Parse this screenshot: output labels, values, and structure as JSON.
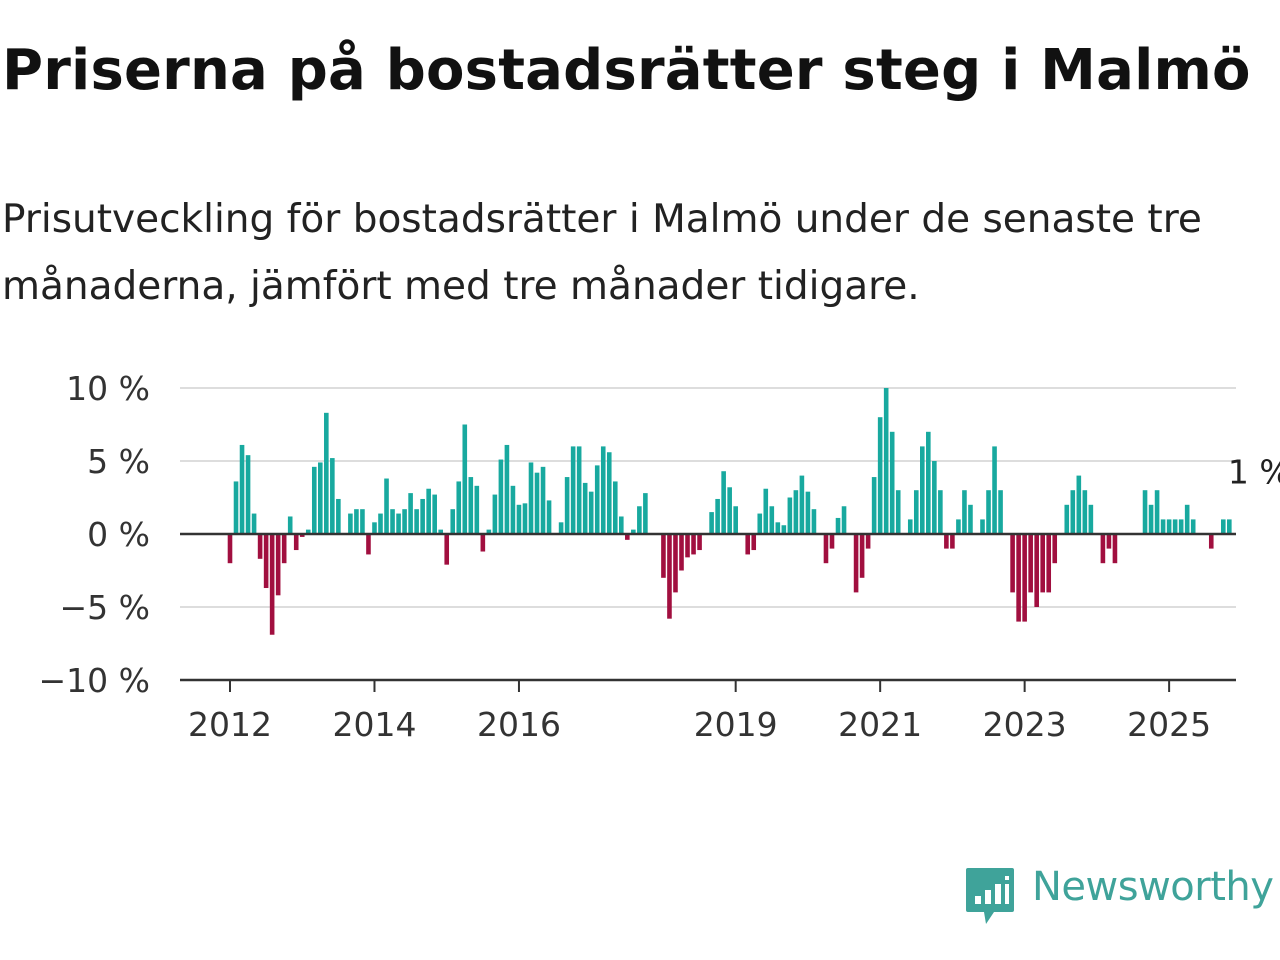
{
  "title": "Priserna på bostadsrätter steg i Malmö",
  "subtitle": "Prisutveckling för bostadsrätter i Malmö under de senaste tre månaderna, jämfört med tre månader tidigare.",
  "brand": {
    "name": "Newsworthy",
    "icon": "newsworthy-logo-icon",
    "color": "#3fa39a"
  },
  "colors": {
    "positive": "#18a99f",
    "negative": "#a10f3f",
    "grid": "#dddddd",
    "axis": "#333333"
  },
  "chart_data": {
    "type": "bar",
    "title": "Priserna på bostadsrätter steg i Malmö",
    "subtitle": "Prisutveckling för bostadsrätter i Malmö under de senaste tre månaderna, jämfört med tre månader tidigare.",
    "xlabel": "",
    "ylabel": "",
    "ylim": [
      -10,
      10
    ],
    "yticks": [
      {
        "value": 10,
        "label": "10 %"
      },
      {
        "value": 5,
        "label": "5 %"
      },
      {
        "value": 0,
        "label": "0 %"
      },
      {
        "value": -5,
        "label": "−5 %"
      },
      {
        "value": -10,
        "label": "−10 %"
      }
    ],
    "xticks": [
      "2012",
      "2014",
      "2016",
      "2019",
      "2021",
      "2023",
      "2025"
    ],
    "x_start": "2012-01",
    "x_end": "2025-04",
    "grid": true,
    "legend": "none",
    "values": [
      -2,
      3.6,
      6.1,
      5.4,
      1.4,
      -1.7,
      -3.7,
      -6.9,
      -4.2,
      -2,
      1.2,
      -1.1,
      -0.2,
      0.3,
      4.6,
      4.9,
      8.3,
      5.2,
      2.4,
      0,
      1.4,
      1.7,
      1.7,
      -1.4,
      0.8,
      1.4,
      3.8,
      1.7,
      1.4,
      1.7,
      2.8,
      1.7,
      2.4,
      3.1,
      2.7,
      0.3,
      -2.1,
      1.7,
      3.6,
      7.5,
      3.9,
      3.3,
      -1.2,
      0.3,
      2.7,
      5.1,
      6.1,
      3.3,
      2,
      2.1,
      4.9,
      4.2,
      4.6,
      2.3,
      0,
      0.8,
      3.9,
      6,
      6,
      3.5,
      2.9,
      4.7,
      6,
      5.6,
      3.6,
      1.2,
      -0.4,
      0.3,
      1.9,
      2.8,
      0,
      0,
      -3,
      -5.8,
      -4,
      -2.5,
      -1.6,
      -1.4,
      -1.1,
      0,
      1.5,
      2.4,
      4.3,
      3.2,
      1.9,
      0,
      -1.4,
      -1.1,
      1.4,
      3.1,
      1.9,
      0.8,
      0.6,
      2.5,
      3,
      4,
      2.9,
      1.7,
      0,
      -2,
      -1,
      1.1,
      1.9,
      0,
      -4,
      -3,
      -1,
      3.9,
      8,
      10,
      7,
      3,
      0,
      1,
      3,
      6,
      7,
      5,
      3,
      -1,
      -1,
      1,
      3,
      2,
      0,
      1,
      3,
      6,
      3,
      0,
      -4,
      -6,
      -6,
      -4,
      -5,
      -4,
      -4,
      -2,
      0,
      2,
      3,
      4,
      3,
      2,
      0,
      -2,
      -1,
      -2,
      0,
      0,
      0,
      0,
      3,
      2,
      3,
      1,
      1,
      1,
      1,
      2,
      1,
      0,
      0,
      -1,
      0,
      1,
      1
    ],
    "annotations": [
      {
        "text": "1 %",
        "target": "last",
        "value": 1
      }
    ]
  }
}
